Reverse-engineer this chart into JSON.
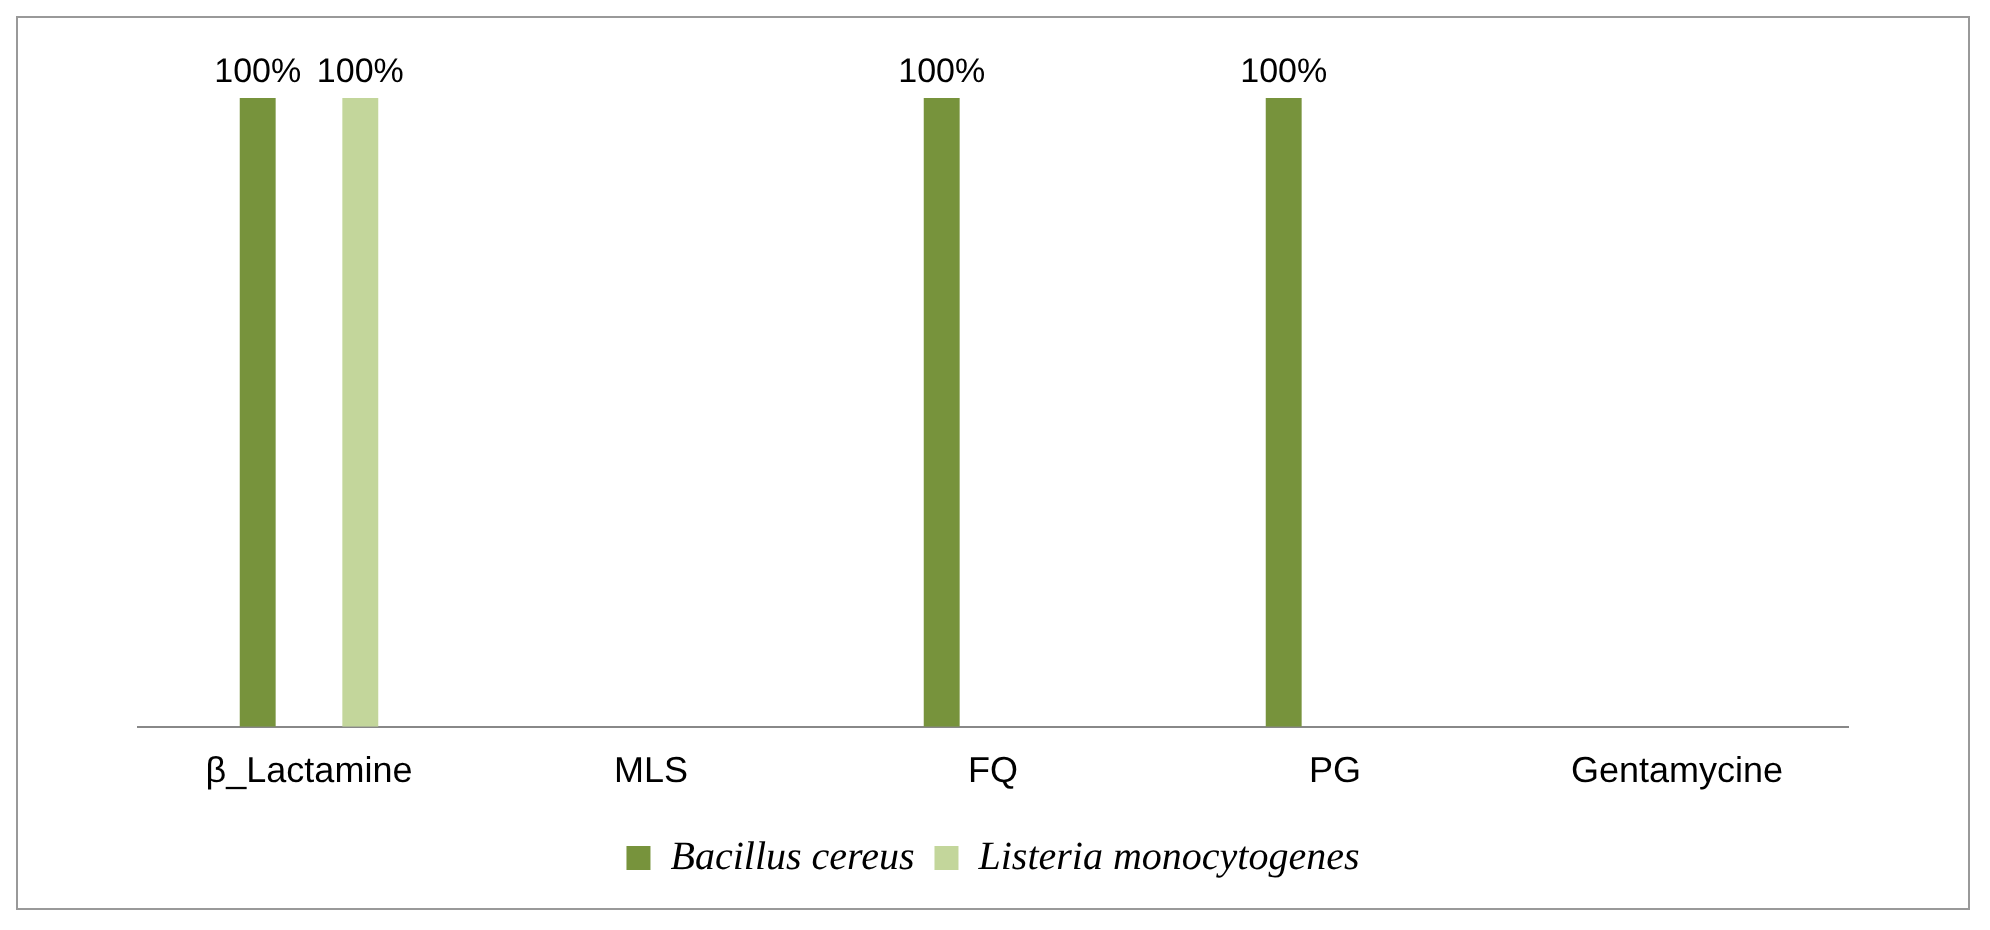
{
  "chart_data": {
    "type": "bar",
    "categories": [
      "β_Lactamine",
      "MLS",
      "FQ",
      "PG",
      "Gentamycine"
    ],
    "series": [
      {
        "name": "Bacillus cereus",
        "color": "#77933c",
        "values": [
          100,
          0,
          100,
          100,
          0
        ],
        "value_labels": [
          "100%",
          null,
          "100%",
          "100%",
          null
        ]
      },
      {
        "name": "Listeria monocytogenes",
        "color": "#c3d69b",
        "values": [
          100,
          0,
          0,
          0,
          0
        ],
        "value_labels": [
          "100%",
          null,
          null,
          null,
          null
        ]
      }
    ],
    "tick_labels": "x",
    "grid": false,
    "legend": "bottom"
  }
}
